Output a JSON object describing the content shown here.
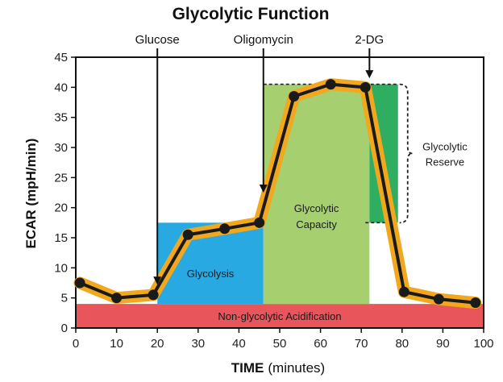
{
  "chart_data": {
    "type": "line",
    "title": "Glycolytic Function",
    "xlabel_bold": "TIME",
    "xlabel_rest": "(minutes)",
    "ylabel": "ECAR (mpH/min)",
    "xlim": [
      0,
      100
    ],
    "ylim": [
      0,
      45
    ],
    "x_ticks": [
      0,
      10,
      20,
      30,
      40,
      50,
      60,
      70,
      80,
      90,
      100
    ],
    "y_ticks": [
      0,
      5,
      10,
      15,
      20,
      25,
      30,
      35,
      40,
      45
    ],
    "series": [
      {
        "name": "ECAR",
        "x": [
          1,
          10,
          19,
          27.5,
          36.5,
          45,
          53.5,
          62.5,
          71,
          80.5,
          89,
          98
        ],
        "y": [
          7.5,
          5,
          5.5,
          15.5,
          16.5,
          17.5,
          38.5,
          40.5,
          40,
          6,
          4.8,
          4.2
        ]
      }
    ],
    "regions": [
      {
        "name": "Non-glycolytic Acidification",
        "x0": 0,
        "x1": 100,
        "y0": 0,
        "y1": 4,
        "color": "#e8555a"
      },
      {
        "name": "Glycolysis",
        "x0": 20,
        "x1": 46,
        "y0": 4,
        "y1": 17.5,
        "color": "#29a9e1"
      },
      {
        "name": "Glycolytic Capacity",
        "x0": 46,
        "x1": 72,
        "y0": 4,
        "y1": 40.5,
        "color": "#a6cf6f"
      },
      {
        "name": "Glycolytic Reserve",
        "x0": 72,
        "x1": 79,
        "y0": 17.5,
        "y1": 40.5,
        "color": "#2fae62"
      }
    ],
    "injections": [
      {
        "label": "Glucose",
        "x": 20
      },
      {
        "label": "Oligomycin",
        "x": 46
      },
      {
        "label": "2-DG",
        "x": 72
      }
    ],
    "region_labels": {
      "non_glycolytic": "Non-glycolytic Acidification",
      "glycolysis": "Glycolysis",
      "capacity_line1": "Glycolytic",
      "capacity_line2": "Capacity",
      "reserve_line1": "Glycolytic",
      "reserve_line2": "Reserve"
    },
    "colors": {
      "line": "#1a1a1a",
      "line_glow": "#f2a81d",
      "arrow": "#111111"
    }
  }
}
